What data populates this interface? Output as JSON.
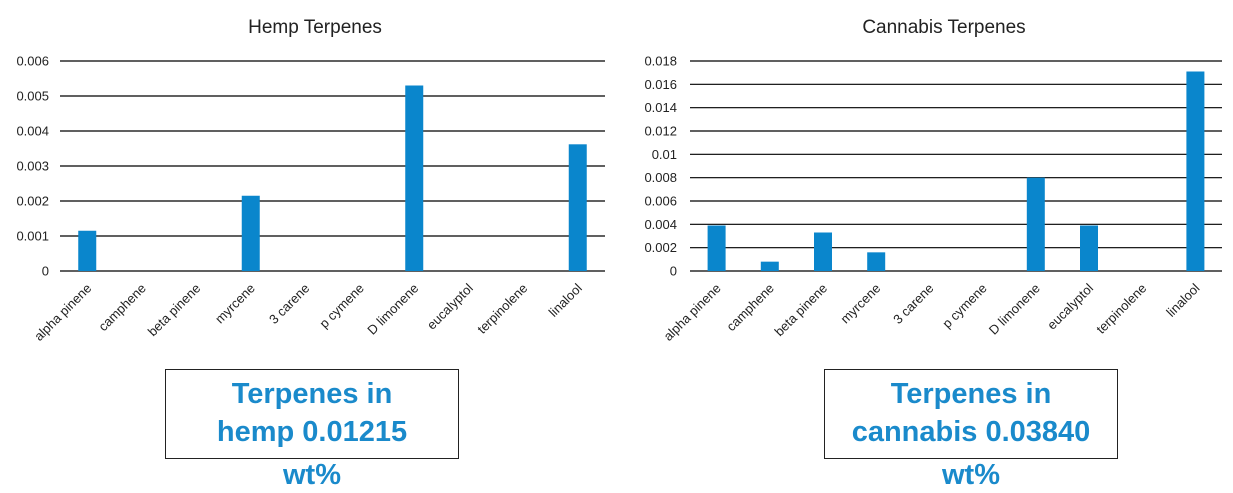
{
  "colors": {
    "bar": "#0a86cc",
    "summary_text": "#1a8acb",
    "gridline": "#000000"
  },
  "chart_data": [
    {
      "type": "bar",
      "title": "Hemp Terpenes",
      "categories": [
        "alpha pinene",
        "camphene",
        "beta pinene",
        "myrcene",
        "3 carene",
        "p cymene",
        "D limonene",
        "eucalyptol",
        "terpinolene",
        "linalool"
      ],
      "values": [
        0.00115,
        0,
        0,
        0.00215,
        0,
        0,
        0.0053,
        0,
        0,
        0.00362
      ],
      "yticks": [
        "0",
        "0.001",
        "0.002",
        "0.003",
        "0.004",
        "0.005",
        "0.006"
      ],
      "ylim": [
        0,
        0.006
      ],
      "grid": true,
      "xlabel": "",
      "ylabel": ""
    },
    {
      "type": "bar",
      "title": "Cannabis Terpenes",
      "categories": [
        "alpha pinene",
        "camphene",
        "beta pinene",
        "myrcene",
        "3 carene",
        "p cymene",
        "D limonene",
        "eucalyptol",
        "terpinolene",
        "linalool"
      ],
      "values": [
        0.0039,
        0.0008,
        0.0033,
        0.0016,
        0,
        0,
        0.008,
        0.0039,
        0,
        0.0171
      ],
      "yticks": [
        "0",
        "0.002",
        "0.004",
        "0.006",
        "0.008",
        "0.01",
        "0.012",
        "0.014",
        "0.016",
        "0.018"
      ],
      "ylim": [
        0,
        0.018
      ],
      "grid": true,
      "xlabel": "",
      "ylabel": ""
    }
  ],
  "summaries": {
    "hemp": {
      "line1": "Terpenes in",
      "line2": "hemp 0.01215",
      "line3": "wt%"
    },
    "cannabis": {
      "line1": "Terpenes in",
      "line2": "cannabis 0.03840",
      "line3": "wt%"
    }
  }
}
